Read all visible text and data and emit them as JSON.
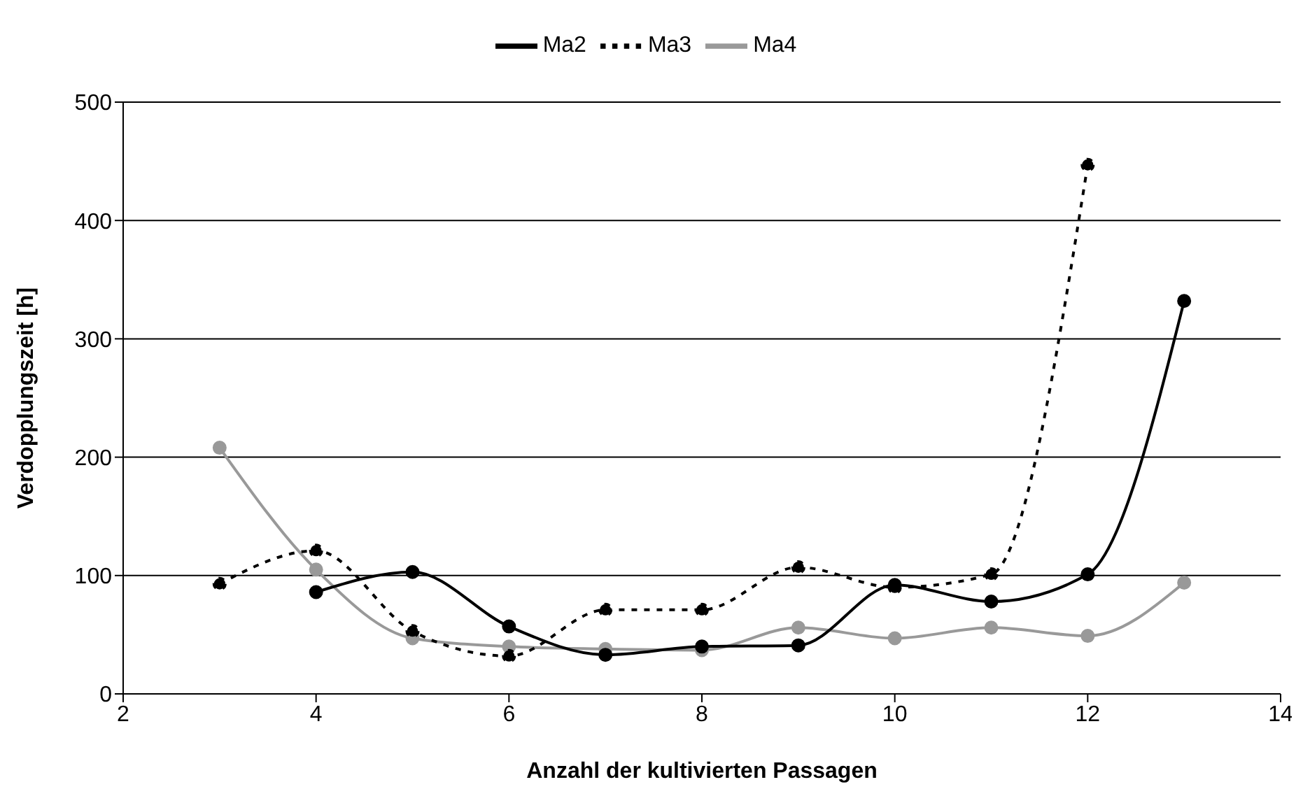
{
  "chart_data": {
    "type": "line",
    "xlabel": "Anzahl der kultivierten Passagen",
    "ylabel": "Verdopplungszeit [h]",
    "x": [
      3,
      4,
      5,
      6,
      7,
      8,
      9,
      10,
      11,
      12,
      13
    ],
    "series": [
      {
        "name": "Ma2",
        "color": "#000000",
        "line_style": "solid",
        "values": [
          null,
          86,
          103,
          57,
          33,
          40,
          41,
          92,
          78,
          101,
          332
        ]
      },
      {
        "name": "Ma3",
        "color": "#000000",
        "line_style": "dashed",
        "values": [
          93,
          121,
          53,
          32,
          71,
          71,
          107,
          90,
          101,
          447,
          null
        ]
      },
      {
        "name": "Ma4",
        "color": "#999999",
        "line_style": "solid",
        "values": [
          208,
          105,
          47,
          40,
          38,
          37,
          56,
          47,
          56,
          49,
          94
        ]
      }
    ],
    "xlim": [
      2,
      14
    ],
    "xticks": [
      2,
      4,
      6,
      8,
      10,
      12,
      14
    ],
    "ylim": [
      0,
      500
    ],
    "yticks": [
      0,
      100,
      200,
      300,
      400,
      500
    ],
    "grid": "y",
    "legend": "top",
    "marker": "circle"
  }
}
